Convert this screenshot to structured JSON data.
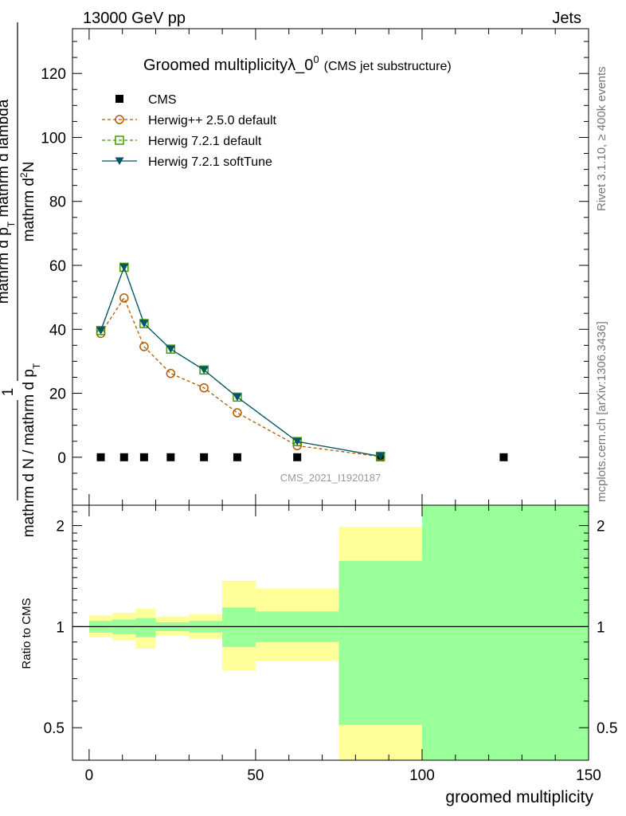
{
  "header": {
    "left": "13000 GeV pp",
    "right": "Jets"
  },
  "side_labels": {
    "rivet": "Rivet 3.1.10, ≥ 400k events",
    "mcplots": "mcplots.cern.ch [arXiv:1306.3436]"
  },
  "colors": {
    "herwig_pp": "#b35900",
    "herwig_721": "#449900",
    "herwig_soft": "#005566",
    "band_yellow": "#ffff99",
    "band_green": "#99ff99"
  },
  "chart_data": [
    {
      "type": "line",
      "title": "Groomed multiplicityλ_0",
      "title_sup": "0",
      "title_suffix": "(CMS jet substructure)",
      "analysis_label": "CMS_2021_I1920187",
      "ylabel": {
        "inner_num": "mathrm d",
        "inner_num_sup": "2",
        "inner_num_tail": "N",
        "inner_den": "mathrm d p",
        "inner_den_sub": "T",
        "inner_den_tail": " mathrm d lambda",
        "outer_num": "1",
        "outer_den": "mathrm d N / mathrm d p",
        "outer_den_sub": "T"
      },
      "xlim": [
        -5,
        150
      ],
      "ylim": [
        -15,
        134
      ],
      "yticks": [
        0,
        20,
        40,
        60,
        80,
        100,
        120
      ],
      "ytick_labels": [
        "0",
        "20",
        "40",
        "60",
        "80",
        "100",
        "120"
      ],
      "x": [
        3.5,
        10.5,
        16.5,
        24.5,
        34.5,
        44.5,
        62.5,
        87.5,
        124.5
      ],
      "series": [
        {
          "name": "CMS",
          "marker": "square",
          "values": [
            0,
            0,
            0,
            0,
            0,
            0,
            0,
            0,
            0
          ]
        },
        {
          "name": "Herwig++ 2.5.0 default",
          "marker": "open-circle",
          "dash": true,
          "values": [
            38.7,
            49.8,
            34.6,
            26.2,
            21.7,
            13.9,
            3.6,
            0.2,
            null
          ]
        },
        {
          "name": "Herwig 7.2.1 default",
          "marker": "open-square",
          "dash": true,
          "values": [
            39.6,
            59.4,
            41.8,
            33.8,
            27.3,
            18.8,
            4.9,
            0.3,
            null
          ]
        },
        {
          "name": "Herwig 7.2.1 softTune",
          "marker": "triangle-down",
          "dash": false,
          "values": [
            39.6,
            59.4,
            41.8,
            33.8,
            27.3,
            18.8,
            4.9,
            0.3,
            null
          ]
        }
      ]
    },
    {
      "type": "area",
      "ylabel": "Ratio to CMS",
      "xlabel": "groomed multiplicity",
      "xlim": [
        -5,
        150
      ],
      "xticks": [
        0,
        50,
        100,
        150
      ],
      "xtick_labels": [
        "0",
        "50",
        "100",
        "150"
      ],
      "ylim": [
        0.4,
        2.3
      ],
      "yscale": "log",
      "yticks": [
        0.5,
        1,
        2
      ],
      "ytick_labels": [
        "0.5",
        "1",
        "2"
      ],
      "reference": 1,
      "bins": [
        {
          "lo": 0,
          "hi": 7,
          "yellow": [
            0.93,
            1.08
          ],
          "green": [
            0.96,
            1.04
          ]
        },
        {
          "lo": 7,
          "hi": 14,
          "yellow": [
            0.91,
            1.1
          ],
          "green": [
            0.95,
            1.05
          ]
        },
        {
          "lo": 14,
          "hi": 20,
          "yellow": [
            0.86,
            1.13
          ],
          "green": [
            0.93,
            1.06
          ]
        },
        {
          "lo": 20,
          "hi": 30,
          "yellow": [
            0.94,
            1.07
          ],
          "green": [
            0.97,
            1.03
          ]
        },
        {
          "lo": 30,
          "hi": 40,
          "yellow": [
            0.92,
            1.09
          ],
          "green": [
            0.96,
            1.04
          ]
        },
        {
          "lo": 40,
          "hi": 50,
          "yellow": [
            0.74,
            1.37
          ],
          "green": [
            0.87,
            1.14
          ]
        },
        {
          "lo": 50,
          "hi": 75,
          "yellow": [
            0.79,
            1.3
          ],
          "green": [
            0.9,
            1.11
          ]
        },
        {
          "lo": 75,
          "hi": 100,
          "yellow": [
            0.4,
            1.98
          ],
          "green": [
            0.51,
            1.57
          ]
        },
        {
          "lo": 100,
          "hi": 150,
          "yellow": [
            0.4,
            2.3
          ],
          "green": [
            0.4,
            2.3
          ]
        }
      ]
    }
  ]
}
